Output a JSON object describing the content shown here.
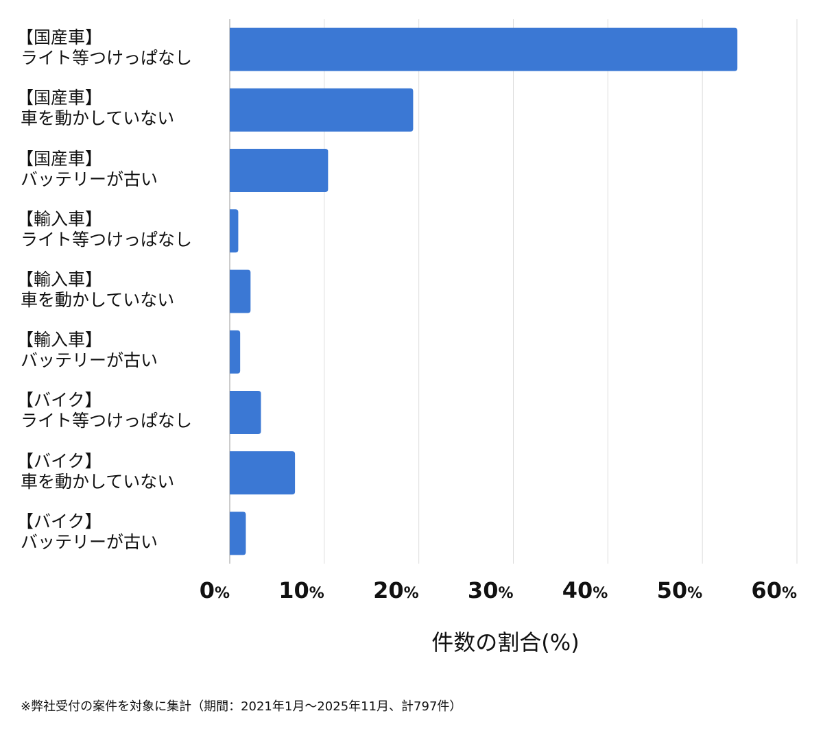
{
  "chart_data": {
    "type": "bar",
    "orientation": "horizontal",
    "categories": [
      [
        "【国産車】",
        "ライト等つけっぱなし"
      ],
      [
        "【国産車】",
        "車を動かしていない"
      ],
      [
        "【国産車】",
        "バッテリーが古い"
      ],
      [
        "【輸入車】",
        "ライト等つけっぱなし"
      ],
      [
        "【輸入車】",
        "車を動かしていない"
      ],
      [
        "【輸入車】",
        "バッテリーが古い"
      ],
      [
        "【バイク】",
        "ライト等つけっぱなし"
      ],
      [
        "【バイク】",
        "車を動かしていない"
      ],
      [
        "【バイク】",
        "バッテリーが古い"
      ]
    ],
    "values": [
      53.7,
      19.4,
      10.4,
      0.9,
      2.2,
      1.1,
      3.3,
      6.9,
      1.7
    ],
    "xlabel": "件数の割合(%)",
    "ylabel": "",
    "xlim": [
      0,
      60
    ],
    "ticks": [
      {
        "num": "0",
        "unit": "%"
      },
      {
        "num": "10",
        "unit": "%"
      },
      {
        "num": "20",
        "unit": "%"
      },
      {
        "num": "30",
        "unit": "%"
      },
      {
        "num": "40",
        "unit": "%"
      },
      {
        "num": "50",
        "unit": "%"
      },
      {
        "num": "60",
        "unit": "%"
      }
    ],
    "grid": true,
    "bar_color": "#3b78d4"
  },
  "footnote": "※弊社受付の案件を対象に集計（期間：2021年1月〜2025年11月、計797件）"
}
